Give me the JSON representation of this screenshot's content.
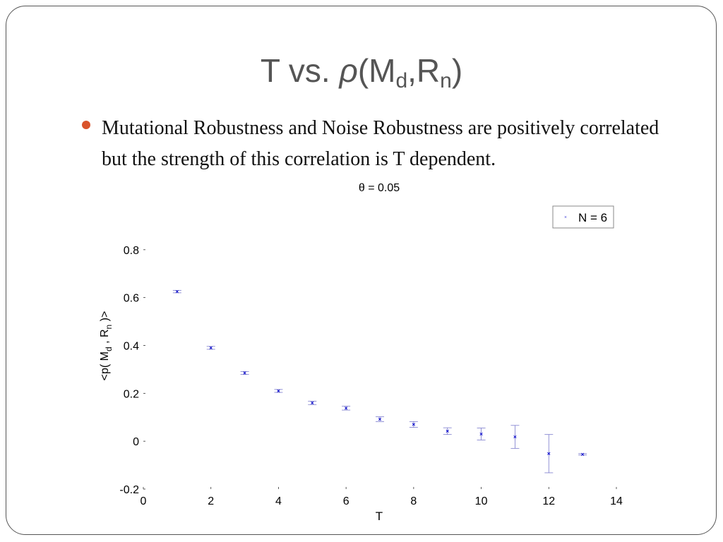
{
  "slide": {
    "title_prefix": "T vs. ",
    "title_rho": "ρ",
    "title_open": "(M",
    "title_sub1": "d",
    "title_mid": ",R",
    "title_sub2": "n",
    "title_close": ")",
    "bullet": "Mutational Robustness and Noise Robustness are positively correlated but the strength of this correlation is T dependent.",
    "bullet_color": "#d9532b"
  },
  "chart_data": {
    "type": "scatter",
    "title": "θ = 0.05",
    "xlabel": "T",
    "ylabel": "<p( M",
    "ylabel_sub1": "d",
    "ylabel_mid": " , R",
    "ylabel_sub2": "n",
    "ylabel_end": " )>",
    "xlim": [
      0,
      14
    ],
    "ylim": [
      -0.2,
      1.0
    ],
    "xticks": [
      0,
      2,
      4,
      6,
      8,
      10,
      12,
      14
    ],
    "xtick_labels": [
      "0",
      "2",
      "4",
      "6",
      "8",
      "10",
      "12",
      "14"
    ],
    "yticks": [
      -0.2,
      0,
      0.2,
      0.4,
      0.6,
      0.8
    ],
    "ytick_labels": [
      "-0.2",
      "0",
      "0.2",
      "0.4",
      "0.6",
      "0.8"
    ],
    "grid": false,
    "legend": {
      "position": "top-right",
      "entries": [
        "N = 6"
      ]
    },
    "series": [
      {
        "name": "N = 6",
        "color": "#0000cc",
        "marker": "x",
        "x": [
          1,
          2,
          3,
          4,
          5,
          6,
          7,
          8,
          9,
          10,
          11,
          12,
          13
        ],
        "y": [
          0.625,
          0.39,
          0.285,
          0.21,
          0.16,
          0.138,
          0.092,
          0.07,
          0.042,
          0.03,
          0.018,
          -0.052,
          -0.055
        ],
        "error": [
          0.005,
          0.006,
          0.006,
          0.006,
          0.007,
          0.008,
          0.01,
          0.012,
          0.014,
          0.025,
          0.048,
          0.08,
          0.003
        ]
      }
    ]
  }
}
